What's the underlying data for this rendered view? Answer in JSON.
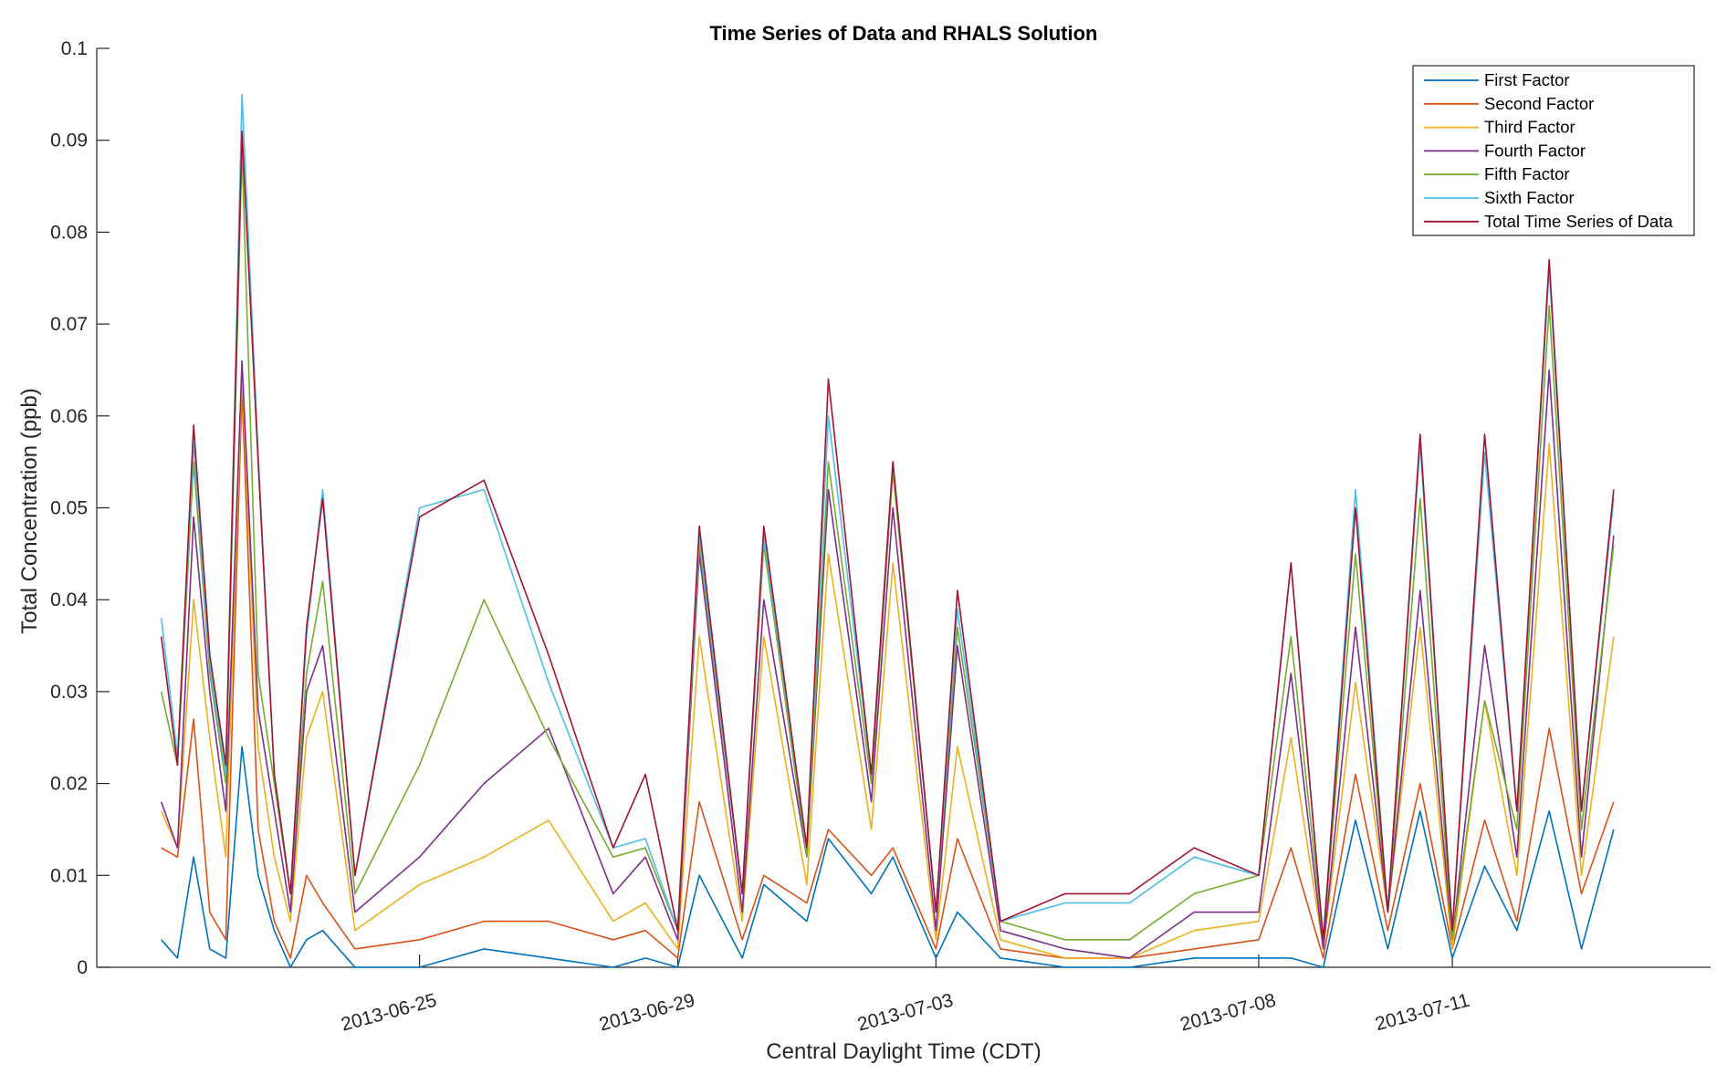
{
  "chart_data": {
    "type": "line",
    "title": "Time Series of Data and RHALS Solution",
    "xlabel": "Central Daylight Time (CDT)",
    "ylabel": "Total Concentration (ppb)",
    "x_axis_type": "date",
    "x_range": [
      "2013-06-20",
      "2013-07-15"
    ],
    "ylim": [
      0,
      0.1
    ],
    "x_ticks": [
      "2013-06-25",
      "2013-06-29",
      "2013-07-03",
      "2013-07-08",
      "2013-07-11"
    ],
    "y_ticks": [
      0,
      0.01,
      0.02,
      0.03,
      0.04,
      0.05,
      0.06,
      0.07,
      0.08,
      0.09,
      0.1
    ],
    "y_tick_labels": [
      "0",
      "0.01",
      "0.02",
      "0.03",
      "0.04",
      "0.05",
      "0.06",
      "0.07",
      "0.08",
      "0.09",
      "0.1"
    ],
    "grid": false,
    "legend_position": "top-right",
    "series": [
      {
        "name": "First Factor",
        "color": "#0072BD",
        "x": [
          "2013-06-21T00:00",
          "2013-06-21T06:00",
          "2013-06-21T12:00",
          "2013-06-21T18:00",
          "2013-06-22T00:00",
          "2013-06-22T06:00",
          "2013-06-22T12:00",
          "2013-06-22T18:00",
          "2013-06-23T00:00",
          "2013-06-23T06:00",
          "2013-06-23T12:00",
          "2013-06-24T00:00",
          "2013-06-25T00:00",
          "2013-06-26T00:00",
          "2013-06-27T00:00",
          "2013-06-28T00:00",
          "2013-06-28T12:00",
          "2013-06-29T00:00",
          "2013-06-29T08:00",
          "2013-06-30T00:00",
          "2013-06-30T08:00",
          "2013-07-01T00:00",
          "2013-07-01T08:00",
          "2013-07-02T00:00",
          "2013-07-02T08:00",
          "2013-07-03T00:00",
          "2013-07-03T08:00",
          "2013-07-04T00:00",
          "2013-07-05T00:00",
          "2013-07-06T00:00",
          "2013-07-07T00:00",
          "2013-07-08T00:00",
          "2013-07-08T12:00",
          "2013-07-09T00:00",
          "2013-07-09T12:00",
          "2013-07-10T00:00",
          "2013-07-10T12:00",
          "2013-07-11T00:00",
          "2013-07-11T12:00",
          "2013-07-12T00:00",
          "2013-07-12T12:00",
          "2013-07-13T00:00",
          "2013-07-13T12:00"
        ],
        "y": [
          0.003,
          0.001,
          0.012,
          0.002,
          0.001,
          0.024,
          0.01,
          0.004,
          0.0,
          0.003,
          0.004,
          0.0,
          0.0,
          0.002,
          0.001,
          0.0,
          0.001,
          0.0,
          0.01,
          0.001,
          0.009,
          0.005,
          0.014,
          0.008,
          0.012,
          0.001,
          0.006,
          0.001,
          0.0,
          0.0,
          0.001,
          0.001,
          0.001,
          0.0,
          0.016,
          0.002,
          0.017,
          0.001,
          0.011,
          0.004,
          0.017,
          0.002,
          0.015
        ]
      },
      {
        "name": "Second Factor",
        "color": "#D95319",
        "x": [
          "2013-06-21T00:00",
          "2013-06-21T06:00",
          "2013-06-21T12:00",
          "2013-06-21T18:00",
          "2013-06-22T00:00",
          "2013-06-22T06:00",
          "2013-06-22T12:00",
          "2013-06-22T18:00",
          "2013-06-23T00:00",
          "2013-06-23T06:00",
          "2013-06-23T12:00",
          "2013-06-24T00:00",
          "2013-06-25T00:00",
          "2013-06-26T00:00",
          "2013-06-27T00:00",
          "2013-06-28T00:00",
          "2013-06-28T12:00",
          "2013-06-29T00:00",
          "2013-06-29T08:00",
          "2013-06-30T00:00",
          "2013-06-30T08:00",
          "2013-07-01T00:00",
          "2013-07-01T08:00",
          "2013-07-02T00:00",
          "2013-07-02T08:00",
          "2013-07-03T00:00",
          "2013-07-03T08:00",
          "2013-07-04T00:00",
          "2013-07-05T00:00",
          "2013-07-06T00:00",
          "2013-07-07T00:00",
          "2013-07-08T00:00",
          "2013-07-08T12:00",
          "2013-07-09T00:00",
          "2013-07-09T12:00",
          "2013-07-10T00:00",
          "2013-07-10T12:00",
          "2013-07-11T00:00",
          "2013-07-11T12:00",
          "2013-07-12T00:00",
          "2013-07-12T12:00",
          "2013-07-13T00:00",
          "2013-07-13T12:00"
        ],
        "y": [
          0.013,
          0.012,
          0.027,
          0.006,
          0.003,
          0.063,
          0.015,
          0.005,
          0.001,
          0.01,
          0.007,
          0.002,
          0.003,
          0.005,
          0.005,
          0.003,
          0.004,
          0.001,
          0.018,
          0.003,
          0.01,
          0.007,
          0.015,
          0.01,
          0.013,
          0.002,
          0.014,
          0.002,
          0.001,
          0.001,
          0.002,
          0.003,
          0.013,
          0.001,
          0.021,
          0.004,
          0.02,
          0.002,
          0.016,
          0.005,
          0.026,
          0.008,
          0.018
        ]
      },
      {
        "name": "Third Factor",
        "color": "#EDB120",
        "x": [
          "2013-06-21T00:00",
          "2013-06-21T06:00",
          "2013-06-21T12:00",
          "2013-06-21T18:00",
          "2013-06-22T00:00",
          "2013-06-22T06:00",
          "2013-06-22T12:00",
          "2013-06-22T18:00",
          "2013-06-23T00:00",
          "2013-06-23T06:00",
          "2013-06-23T12:00",
          "2013-06-24T00:00",
          "2013-06-25T00:00",
          "2013-06-26T00:00",
          "2013-06-27T00:00",
          "2013-06-28T00:00",
          "2013-06-28T12:00",
          "2013-06-29T00:00",
          "2013-06-29T08:00",
          "2013-06-30T00:00",
          "2013-06-30T08:00",
          "2013-07-01T00:00",
          "2013-07-01T08:00",
          "2013-07-02T00:00",
          "2013-07-02T08:00",
          "2013-07-03T00:00",
          "2013-07-03T08:00",
          "2013-07-04T00:00",
          "2013-07-05T00:00",
          "2013-07-06T00:00",
          "2013-07-07T00:00",
          "2013-07-08T00:00",
          "2013-07-08T12:00",
          "2013-07-09T00:00",
          "2013-07-09T12:00",
          "2013-07-10T00:00",
          "2013-07-10T12:00",
          "2013-07-11T00:00",
          "2013-07-11T12:00",
          "2013-07-12T00:00",
          "2013-07-12T12:00",
          "2013-07-13T00:00",
          "2013-07-13T12:00"
        ],
        "y": [
          0.017,
          0.013,
          0.04,
          0.025,
          0.012,
          0.065,
          0.024,
          0.012,
          0.005,
          0.025,
          0.03,
          0.004,
          0.009,
          0.012,
          0.016,
          0.005,
          0.007,
          0.002,
          0.036,
          0.005,
          0.036,
          0.009,
          0.045,
          0.015,
          0.044,
          0.003,
          0.024,
          0.003,
          0.001,
          0.001,
          0.004,
          0.005,
          0.025,
          0.002,
          0.031,
          0.006,
          0.037,
          0.002,
          0.029,
          0.01,
          0.057,
          0.01,
          0.036
        ]
      },
      {
        "name": "Fourth Factor",
        "color": "#7E2F8E",
        "x": [
          "2013-06-21T00:00",
          "2013-06-21T06:00",
          "2013-06-21T12:00",
          "2013-06-21T18:00",
          "2013-06-22T00:00",
          "2013-06-22T06:00",
          "2013-06-22T12:00",
          "2013-06-22T18:00",
          "2013-06-23T00:00",
          "2013-06-23T06:00",
          "2013-06-23T12:00",
          "2013-06-24T00:00",
          "2013-06-25T00:00",
          "2013-06-26T00:00",
          "2013-06-27T00:00",
          "2013-06-28T00:00",
          "2013-06-28T12:00",
          "2013-06-29T00:00",
          "2013-06-29T08:00",
          "2013-06-30T00:00",
          "2013-06-30T08:00",
          "2013-07-01T00:00",
          "2013-07-01T08:00",
          "2013-07-02T00:00",
          "2013-07-02T08:00",
          "2013-07-03T00:00",
          "2013-07-03T08:00",
          "2013-07-04T00:00",
          "2013-07-05T00:00",
          "2013-07-06T00:00",
          "2013-07-07T00:00",
          "2013-07-08T00:00",
          "2013-07-08T12:00",
          "2013-07-09T00:00",
          "2013-07-09T12:00",
          "2013-07-10T00:00",
          "2013-07-10T12:00",
          "2013-07-11T00:00",
          "2013-07-11T12:00",
          "2013-07-12T00:00",
          "2013-07-12T12:00",
          "2013-07-13T00:00",
          "2013-07-13T12:00"
        ],
        "y": [
          0.018,
          0.013,
          0.049,
          0.03,
          0.017,
          0.066,
          0.028,
          0.017,
          0.006,
          0.03,
          0.035,
          0.006,
          0.012,
          0.02,
          0.026,
          0.008,
          0.012,
          0.003,
          0.045,
          0.006,
          0.04,
          0.012,
          0.052,
          0.018,
          0.05,
          0.004,
          0.035,
          0.004,
          0.002,
          0.001,
          0.006,
          0.006,
          0.032,
          0.002,
          0.037,
          0.006,
          0.041,
          0.003,
          0.035,
          0.012,
          0.065,
          0.012,
          0.047
        ]
      },
      {
        "name": "Fifth Factor",
        "color": "#77AC30",
        "x": [
          "2013-06-21T00:00",
          "2013-06-21T06:00",
          "2013-06-21T12:00",
          "2013-06-21T18:00",
          "2013-06-22T00:00",
          "2013-06-22T06:00",
          "2013-06-22T12:00",
          "2013-06-22T18:00",
          "2013-06-23T00:00",
          "2013-06-23T06:00",
          "2013-06-23T12:00",
          "2013-06-24T00:00",
          "2013-06-25T00:00",
          "2013-06-26T00:00",
          "2013-06-27T00:00",
          "2013-06-28T00:00",
          "2013-06-28T12:00",
          "2013-06-29T00:00",
          "2013-06-29T08:00",
          "2013-06-30T00:00",
          "2013-06-30T08:00",
          "2013-07-01T00:00",
          "2013-07-01T08:00",
          "2013-07-02T00:00",
          "2013-07-02T08:00",
          "2013-07-03T00:00",
          "2013-07-03T08:00",
          "2013-07-04T00:00",
          "2013-07-05T00:00",
          "2013-07-06T00:00",
          "2013-07-07T00:00",
          "2013-07-08T00:00",
          "2013-07-08T12:00",
          "2013-07-09T00:00",
          "2013-07-09T12:00",
          "2013-07-10T00:00",
          "2013-07-10T12:00",
          "2013-07-11T00:00",
          "2013-07-11T12:00",
          "2013-07-12T00:00",
          "2013-07-12T12:00",
          "2013-07-13T00:00",
          "2013-07-13T12:00"
        ],
        "y": [
          0.03,
          0.022,
          0.055,
          0.032,
          0.02,
          0.089,
          0.032,
          0.02,
          0.008,
          0.032,
          0.042,
          0.008,
          0.022,
          0.04,
          0.025,
          0.012,
          0.013,
          0.004,
          0.046,
          0.008,
          0.046,
          0.012,
          0.055,
          0.02,
          0.054,
          0.006,
          0.037,
          0.005,
          0.003,
          0.003,
          0.008,
          0.01,
          0.036,
          0.003,
          0.045,
          0.006,
          0.051,
          0.003,
          0.029,
          0.015,
          0.072,
          0.015,
          0.046
        ]
      },
      {
        "name": "Sixth Factor",
        "color": "#4DBEEE",
        "x": [
          "2013-06-21T00:00",
          "2013-06-21T06:00",
          "2013-06-21T12:00",
          "2013-06-21T18:00",
          "2013-06-22T00:00",
          "2013-06-22T06:00",
          "2013-06-22T12:00",
          "2013-06-22T18:00",
          "2013-06-23T00:00",
          "2013-06-23T06:00",
          "2013-06-23T12:00",
          "2013-06-24T00:00",
          "2013-06-25T00:00",
          "2013-06-26T00:00",
          "2013-06-27T00:00",
          "2013-06-28T00:00",
          "2013-06-28T12:00",
          "2013-06-29T00:00",
          "2013-06-29T08:00",
          "2013-06-30T00:00",
          "2013-06-30T08:00",
          "2013-07-01T00:00",
          "2013-07-01T08:00",
          "2013-07-02T00:00",
          "2013-07-02T08:00",
          "2013-07-03T00:00",
          "2013-07-03T08:00",
          "2013-07-04T00:00",
          "2013-07-05T00:00",
          "2013-07-06T00:00",
          "2013-07-07T00:00",
          "2013-07-08T00:00",
          "2013-07-08T12:00",
          "2013-07-09T00:00",
          "2013-07-09T12:00",
          "2013-07-10T00:00",
          "2013-07-10T12:00",
          "2013-07-11T00:00",
          "2013-07-11T12:00",
          "2013-07-12T00:00",
          "2013-07-12T12:00",
          "2013-07-13T00:00",
          "2013-07-13T12:00"
        ],
        "y": [
          0.038,
          0.023,
          0.057,
          0.033,
          0.021,
          0.095,
          0.056,
          0.021,
          0.008,
          0.036,
          0.052,
          0.01,
          0.05,
          0.052,
          0.031,
          0.013,
          0.014,
          0.004,
          0.047,
          0.008,
          0.047,
          0.013,
          0.06,
          0.021,
          0.055,
          0.006,
          0.039,
          0.005,
          0.007,
          0.007,
          0.012,
          0.01,
          0.044,
          0.003,
          0.052,
          0.006,
          0.057,
          0.004,
          0.056,
          0.017,
          0.076,
          0.017,
          0.051
        ]
      },
      {
        "name": "Total Time Series of Data",
        "color": "#A2142F",
        "x": [
          "2013-06-21T00:00",
          "2013-06-21T06:00",
          "2013-06-21T12:00",
          "2013-06-21T18:00",
          "2013-06-22T00:00",
          "2013-06-22T06:00",
          "2013-06-22T12:00",
          "2013-06-22T18:00",
          "2013-06-23T00:00",
          "2013-06-23T06:00",
          "2013-06-23T12:00",
          "2013-06-24T00:00",
          "2013-06-25T00:00",
          "2013-06-26T00:00",
          "2013-06-27T00:00",
          "2013-06-28T00:00",
          "2013-06-28T12:00",
          "2013-06-29T00:00",
          "2013-06-29T08:00",
          "2013-06-30T00:00",
          "2013-06-30T08:00",
          "2013-07-01T00:00",
          "2013-07-01T08:00",
          "2013-07-02T00:00",
          "2013-07-02T08:00",
          "2013-07-03T00:00",
          "2013-07-03T08:00",
          "2013-07-04T00:00",
          "2013-07-05T00:00",
          "2013-07-06T00:00",
          "2013-07-07T00:00",
          "2013-07-08T00:00",
          "2013-07-08T12:00",
          "2013-07-09T00:00",
          "2013-07-09T12:00",
          "2013-07-10T00:00",
          "2013-07-10T12:00",
          "2013-07-11T00:00",
          "2013-07-11T12:00",
          "2013-07-12T00:00",
          "2013-07-12T12:00",
          "2013-07-13T00:00",
          "2013-07-13T12:00"
        ],
        "y": [
          0.036,
          0.022,
          0.059,
          0.034,
          0.022,
          0.091,
          0.055,
          0.021,
          0.008,
          0.037,
          0.051,
          0.01,
          0.049,
          0.053,
          0.034,
          0.013,
          0.021,
          0.004,
          0.048,
          0.008,
          0.048,
          0.013,
          0.064,
          0.021,
          0.055,
          0.006,
          0.041,
          0.005,
          0.008,
          0.008,
          0.013,
          0.01,
          0.044,
          0.003,
          0.05,
          0.006,
          0.058,
          0.004,
          0.058,
          0.017,
          0.077,
          0.017,
          0.052
        ]
      }
    ]
  }
}
